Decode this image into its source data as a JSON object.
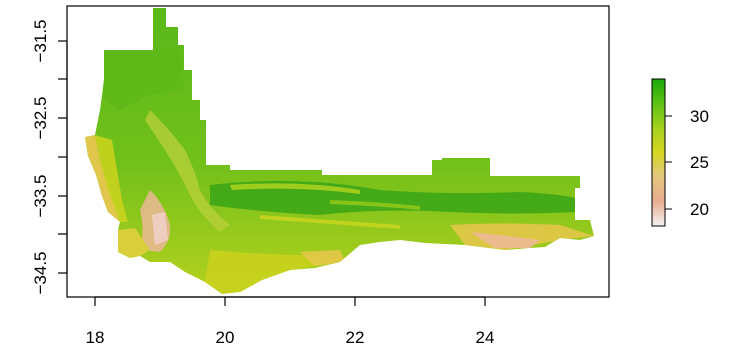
{
  "map": {
    "type": "raster",
    "x_axis": {
      "ticks": [
        "18",
        "20",
        "22",
        "24"
      ],
      "range": [
        17.55,
        25.9
      ]
    },
    "y_axis": {
      "ticks": [
        "−31.5",
        "−32.5",
        "−33.5",
        "−34.5"
      ],
      "range": [
        -34.85,
        -31.2
      ]
    },
    "legend": {
      "ticks": [
        "30",
        "25",
        "20"
      ],
      "range": [
        18,
        33.5
      ],
      "colors": [
        "#f2f2f2",
        "#e7ad8f",
        "#e1c97a",
        "#d6d620",
        "#a6d11c",
        "#5fc214",
        "#1aa80a"
      ]
    },
    "region_colors": {
      "high": "#3aa516",
      "mid": "#7ec41a",
      "low": "#c5d41e",
      "coast": "#e3c64a",
      "dry": "#ecb996"
    }
  }
}
